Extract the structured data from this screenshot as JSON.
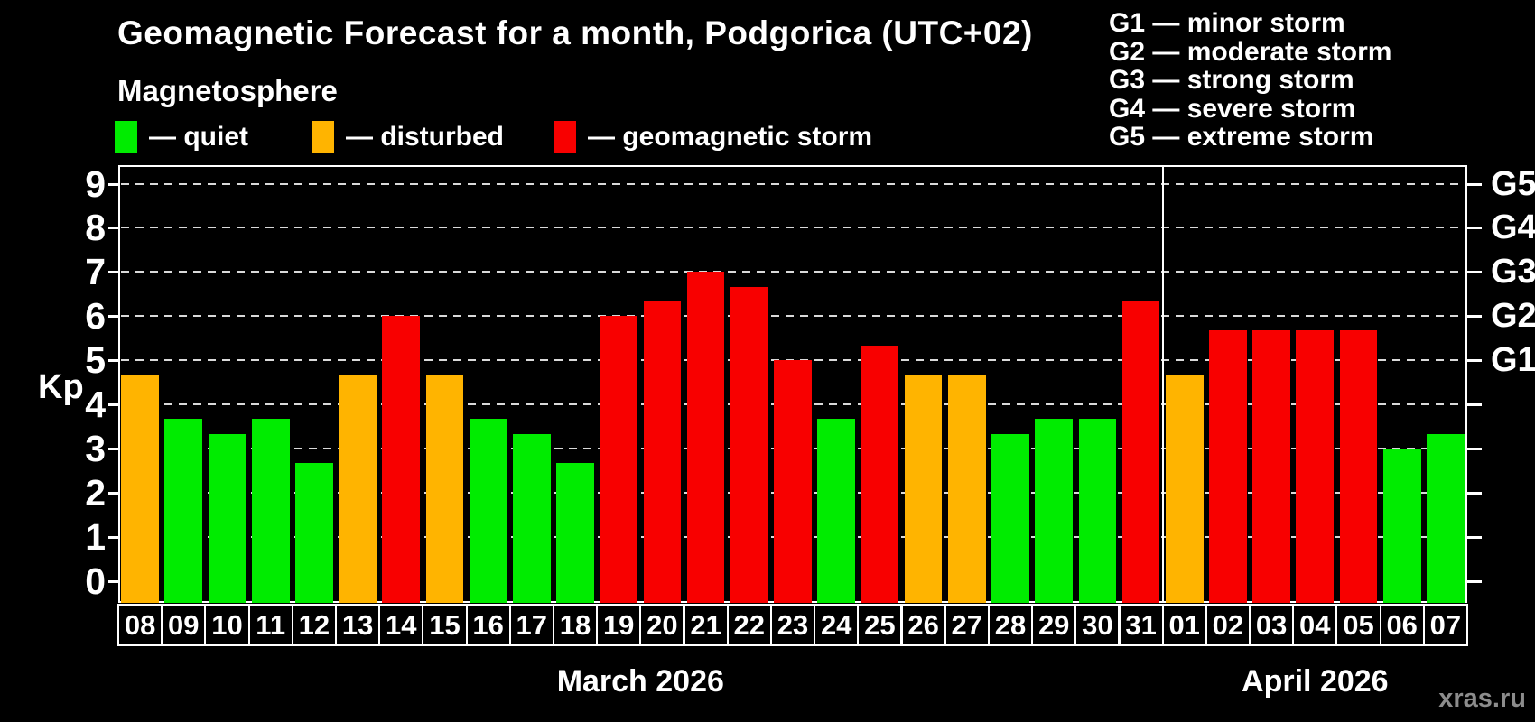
{
  "header": {
    "title": "Geomagnetic Forecast for a month, Podgorica (UTC+02)",
    "subtitle": "Magnetosphere"
  },
  "legend": {
    "items": [
      {
        "key": "quiet",
        "label": "— quiet",
        "color": "#00ec00",
        "x": 0
      },
      {
        "key": "disturbed",
        "label": "— disturbed",
        "color": "#ffb400",
        "x": 218
      },
      {
        "key": "storm",
        "label": "— geomagnetic storm",
        "color": "#f80000",
        "x": 486
      }
    ]
  },
  "g_legend": {
    "lines": [
      "G1 — minor storm",
      "G2 — moderate storm",
      "G3 — strong storm",
      "G4 — severe storm",
      "G5 — extreme storm"
    ]
  },
  "y_axis": {
    "label": "Kp",
    "ticks": [
      0,
      1,
      2,
      3,
      4,
      5,
      6,
      7,
      8,
      9
    ]
  },
  "right_axis": {
    "labels": [
      {
        "value": 5,
        "text": "G1"
      },
      {
        "value": 6,
        "text": "G2"
      },
      {
        "value": 7,
        "text": "G3"
      },
      {
        "value": 8,
        "text": "G4"
      },
      {
        "value": 9,
        "text": "G5"
      }
    ]
  },
  "months": [
    {
      "label": "March 2026",
      "start": 0,
      "count": 24
    },
    {
      "label": "April 2026",
      "start": 24,
      "count": 7
    }
  ],
  "watermark": "xras.ru",
  "colors": {
    "quiet": "#00ec00",
    "disturbed": "#ffb400",
    "storm": "#f80000",
    "background": "#000000",
    "grid": "#d9d9d9",
    "axis": "#ffffff",
    "watermark": "#8c8c8c"
  },
  "chart_data": {
    "type": "bar",
    "title": "Geomagnetic Forecast for a month, Podgorica (UTC+02)",
    "ylabel": "Kp",
    "ylim": [
      -0.5,
      9.42
    ],
    "grid": "horizontal dashed gridlines at Kp 1..9",
    "legend_position": "top-left",
    "categories": [
      "08",
      "09",
      "10",
      "11",
      "12",
      "13",
      "14",
      "15",
      "16",
      "17",
      "18",
      "19",
      "20",
      "21",
      "22",
      "23",
      "24",
      "25",
      "26",
      "27",
      "28",
      "29",
      "30",
      "31",
      "01",
      "02",
      "03",
      "04",
      "05",
      "06",
      "07"
    ],
    "values": [
      4.67,
      3.67,
      3.33,
      3.67,
      2.67,
      4.67,
      6.0,
      4.67,
      3.67,
      3.33,
      2.67,
      6.0,
      6.33,
      7.0,
      6.67,
      5.0,
      3.67,
      5.33,
      4.67,
      4.67,
      3.33,
      3.67,
      3.67,
      6.33,
      4.67,
      5.67,
      5.67,
      5.67,
      5.67,
      3.0,
      3.33
    ],
    "levels": [
      "disturbed",
      "quiet",
      "quiet",
      "quiet",
      "quiet",
      "disturbed",
      "storm",
      "disturbed",
      "quiet",
      "quiet",
      "quiet",
      "storm",
      "storm",
      "storm",
      "storm",
      "storm",
      "quiet",
      "storm",
      "disturbed",
      "disturbed",
      "quiet",
      "quiet",
      "quiet",
      "storm",
      "disturbed",
      "storm",
      "storm",
      "storm",
      "storm",
      "quiet",
      "quiet"
    ],
    "month_split_index": 24
  }
}
